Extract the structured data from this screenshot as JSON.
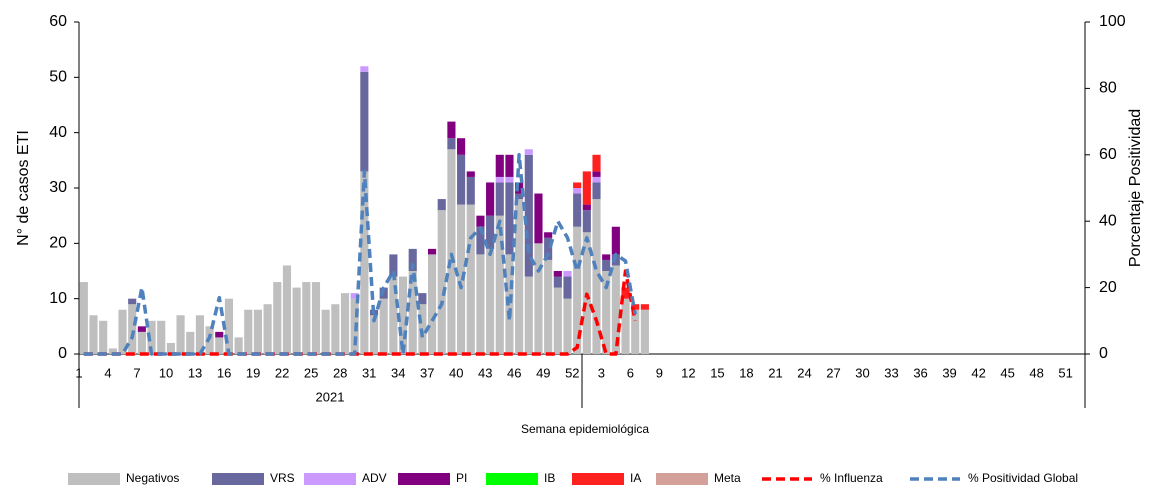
{
  "chart_data": {
    "type": "bar",
    "x_label": "Semana epidemiológica",
    "y_label": "N° de casos ETI",
    "y2_label": "Porcentaje  Positividad",
    "x_group_label": "2021",
    "ylim": [
      0,
      60
    ],
    "yticks": [
      0,
      10,
      20,
      30,
      40,
      50,
      60
    ],
    "y2lim": [
      0,
      100
    ],
    "y2ticks": [
      0,
      20,
      40,
      60,
      80,
      100
    ],
    "stacked": true,
    "categories": [
      "1",
      null,
      null,
      "4",
      null,
      null,
      "7",
      null,
      null,
      "10",
      null,
      null,
      "13",
      null,
      null,
      "16",
      null,
      null,
      "19",
      null,
      null,
      "22",
      null,
      null,
      "25",
      null,
      null,
      "28",
      null,
      null,
      "31",
      null,
      null,
      "34",
      null,
      null,
      "37",
      null,
      null,
      "40",
      null,
      null,
      "43",
      null,
      null,
      "46",
      null,
      null,
      "49",
      null,
      null,
      "52",
      null,
      null,
      "3",
      null,
      null,
      "6",
      null,
      null,
      "9",
      null,
      null,
      "12",
      null,
      null,
      "15",
      null,
      null,
      "18",
      null,
      null,
      "21",
      null,
      null,
      "24",
      null,
      null,
      "27",
      null,
      null,
      "30",
      null,
      null,
      "33",
      null,
      null,
      "36",
      null,
      null,
      "39",
      null,
      null,
      "42",
      null,
      null,
      "45",
      null,
      null,
      "48",
      null,
      null,
      "51",
      null
    ],
    "series": [
      {
        "name": "Negativos",
        "color": "#bfbfbf",
        "values": [
          13,
          7,
          6,
          1,
          8,
          9,
          4,
          6,
          6,
          2,
          7,
          4,
          7,
          5,
          3,
          10,
          3,
          8,
          8,
          9,
          13,
          16,
          12,
          13,
          13,
          8,
          9,
          11,
          10,
          33,
          7,
          10,
          14,
          14,
          15,
          9,
          18,
          26,
          37,
          27,
          27,
          18,
          19,
          25,
          18,
          28,
          14,
          20,
          17,
          12,
          10,
          23,
          22,
          28,
          15,
          16,
          10,
          8,
          8,
          null,
          null,
          null,
          null,
          null,
          null,
          null,
          null,
          null,
          null,
          null,
          null,
          null,
          null,
          null,
          null,
          null,
          null,
          null,
          null,
          null,
          null,
          null,
          null,
          null,
          null,
          null,
          null,
          null,
          null,
          null,
          null,
          null,
          null,
          null,
          null,
          null,
          null,
          null,
          null,
          null,
          null,
          null,
          null,
          null
        ]
      },
      {
        "name": "VRS",
        "color": "#68689e",
        "values": [
          0,
          0,
          0,
          0,
          0,
          1,
          0,
          0,
          0,
          0,
          0,
          0,
          0,
          0,
          0,
          0,
          0,
          0,
          0,
          0,
          0,
          0,
          0,
          0,
          0,
          0,
          0,
          0,
          0,
          18,
          1,
          2,
          4,
          0,
          4,
          2,
          0,
          2,
          2,
          9,
          5,
          5,
          6,
          6,
          13,
          1,
          22,
          0,
          4,
          2,
          4,
          6,
          4,
          3,
          2,
          2,
          0,
          0,
          0,
          null,
          null,
          null,
          null,
          null,
          null,
          null,
          null,
          null,
          null,
          null,
          null,
          null,
          null,
          null,
          null,
          null,
          null,
          null,
          null,
          null,
          null,
          null,
          null,
          null,
          null,
          null,
          null,
          null,
          null,
          null,
          null,
          null,
          null,
          null,
          null,
          null,
          null,
          null,
          null,
          null,
          null,
          null,
          null,
          null
        ]
      },
      {
        "name": "ADV",
        "color": "#cc99ff",
        "values": [
          0,
          0,
          0,
          0,
          0,
          0,
          0,
          0,
          0,
          0,
          0,
          0,
          0,
          0,
          0,
          0,
          0,
          0,
          0,
          0,
          0,
          0,
          0,
          0,
          0,
          0,
          0,
          0,
          1,
          1,
          0,
          0,
          0,
          0,
          0,
          0,
          0,
          0,
          0,
          0,
          0,
          0,
          0,
          1,
          1,
          0,
          1,
          0,
          0,
          0,
          1,
          1,
          0,
          1,
          0,
          0,
          0,
          0,
          0,
          null,
          null,
          null,
          null,
          null,
          null,
          null,
          null,
          null,
          null,
          null,
          null,
          null,
          null,
          null,
          null,
          null,
          null,
          null,
          null,
          null,
          null,
          null,
          null,
          null,
          null,
          null,
          null,
          null,
          null,
          null,
          null,
          null,
          null,
          null,
          null,
          null,
          null,
          null,
          null,
          null,
          null,
          null,
          null,
          null
        ]
      },
      {
        "name": "PI",
        "color": "#800080",
        "values": [
          0,
          0,
          0,
          0,
          0,
          0,
          1,
          0,
          0,
          0,
          0,
          0,
          0,
          0,
          1,
          0,
          0,
          0,
          0,
          0,
          0,
          0,
          0,
          0,
          0,
          0,
          0,
          0,
          0,
          0,
          0,
          0,
          0,
          0,
          0,
          0,
          1,
          0,
          3,
          3,
          1,
          2,
          6,
          4,
          4,
          2,
          0,
          9,
          1,
          1,
          0,
          0,
          1,
          1,
          1,
          5,
          0,
          0,
          0,
          null,
          null,
          null,
          null,
          null,
          null,
          null,
          null,
          null,
          null,
          null,
          null,
          null,
          null,
          null,
          null,
          null,
          null,
          null,
          null,
          null,
          null,
          null,
          null,
          null,
          null,
          null,
          null,
          null,
          null,
          null,
          null,
          null,
          null,
          null,
          null,
          null,
          null,
          null,
          null,
          null,
          null,
          null,
          null,
          null
        ]
      },
      {
        "name": "IB",
        "color": "#00ff00",
        "values": [
          0,
          0,
          0,
          0,
          0,
          0,
          0,
          0,
          0,
          0,
          0,
          0,
          0,
          0,
          0,
          0,
          0,
          0,
          0,
          0,
          0,
          0,
          0,
          0,
          0,
          0,
          0,
          0,
          0,
          0,
          0,
          0,
          0,
          0,
          0,
          0,
          0,
          0,
          0,
          0,
          0,
          0,
          0,
          0,
          0,
          0,
          0,
          0,
          0,
          0,
          0,
          0,
          0,
          0,
          0,
          0,
          0,
          0,
          0,
          null,
          null,
          null,
          null,
          null,
          null,
          null,
          null,
          null,
          null,
          null,
          null,
          null,
          null,
          null,
          null,
          null,
          null,
          null,
          null,
          null,
          null,
          null,
          null,
          null,
          null,
          null,
          null,
          null,
          null,
          null,
          null,
          null,
          null,
          null,
          null,
          null,
          null,
          null,
          null,
          null,
          null,
          null,
          null,
          null
        ]
      },
      {
        "name": "IA",
        "color": "#ff2020",
        "values": [
          0,
          0,
          0,
          0,
          0,
          0,
          0,
          0,
          0,
          0,
          0,
          0,
          0,
          0,
          0,
          0,
          0,
          0,
          0,
          0,
          0,
          0,
          0,
          0,
          0,
          0,
          0,
          0,
          0,
          0,
          0,
          0,
          0,
          0,
          0,
          0,
          0,
          0,
          0,
          0,
          0,
          0,
          0,
          0,
          0,
          0,
          0,
          0,
          0,
          0,
          0,
          1,
          6,
          3,
          0,
          0,
          2,
          1,
          1,
          null,
          null,
          null,
          null,
          null,
          null,
          null,
          null,
          null,
          null,
          null,
          null,
          null,
          null,
          null,
          null,
          null,
          null,
          null,
          null,
          null,
          null,
          null,
          null,
          null,
          null,
          null,
          null,
          null,
          null,
          null,
          null,
          null,
          null,
          null,
          null,
          null,
          null,
          null,
          null,
          null,
          null,
          null,
          null,
          null
        ]
      },
      {
        "name": "Meta",
        "color": "#d4a09a",
        "values": [
          0,
          0,
          0,
          0,
          0,
          0,
          0,
          0,
          0,
          0,
          0,
          0,
          0,
          0,
          0,
          0,
          0,
          0,
          0,
          0,
          0,
          0,
          0,
          0,
          0,
          0,
          0,
          0,
          0,
          0,
          0,
          0,
          0,
          0,
          0,
          0,
          0,
          0,
          0,
          0,
          0,
          0,
          0,
          0,
          0,
          0,
          0,
          0,
          0,
          0,
          0,
          0,
          0,
          0,
          0,
          0,
          0,
          0,
          0,
          null,
          null,
          null,
          null,
          null,
          null,
          null,
          null,
          null,
          null,
          null,
          null,
          null,
          null,
          null,
          null,
          null,
          null,
          null,
          null,
          null,
          null,
          null,
          null,
          null,
          null,
          null,
          null,
          null,
          null,
          null,
          null,
          null,
          null,
          null,
          null,
          null,
          null,
          null,
          null,
          null,
          null,
          null,
          null,
          null
        ]
      },
      {
        "name": "% Influenza",
        "color": "#ff0000",
        "type": "line",
        "dashed": true,
        "axis": "y2",
        "values": [
          0,
          0,
          0,
          0,
          0,
          0,
          0,
          0,
          0,
          0,
          0,
          0,
          0,
          0,
          0,
          0,
          0,
          0,
          0,
          0,
          0,
          0,
          0,
          0,
          0,
          0,
          0,
          0,
          0,
          0,
          0,
          0,
          0,
          0,
          0,
          0,
          0,
          0,
          0,
          0,
          0,
          0,
          0,
          0,
          0,
          0,
          0,
          0,
          0,
          0,
          0,
          2,
          18,
          10,
          0,
          0,
          25,
          10,
          null,
          null,
          null,
          null,
          null,
          null,
          null,
          null,
          null,
          null,
          null,
          null,
          null,
          null,
          null,
          null,
          null,
          null,
          null,
          null,
          null,
          null,
          null,
          null,
          null,
          null,
          null,
          null,
          null,
          null,
          null,
          null,
          null,
          null,
          null,
          null,
          null,
          null,
          null,
          null,
          null,
          null,
          null,
          null,
          null,
          null
        ]
      },
      {
        "name": "% Positividad Global",
        "color": "#4f81bd",
        "type": "line",
        "dashed": true,
        "axis": "y2",
        "values": [
          0,
          0,
          0,
          0,
          0,
          5,
          20,
          0,
          0,
          0,
          0,
          0,
          0,
          5,
          17,
          0,
          0,
          0,
          0,
          0,
          0,
          0,
          0,
          0,
          0,
          0,
          0,
          0,
          0,
          55,
          10,
          20,
          25,
          0,
          27,
          5,
          10,
          15,
          30,
          20,
          35,
          38,
          30,
          40,
          10,
          60,
          30,
          25,
          30,
          40,
          35,
          25,
          35,
          25,
          20,
          30,
          28,
          12,
          null,
          null,
          null,
          null,
          null,
          null,
          null,
          null,
          null,
          null,
          null,
          null,
          null,
          null,
          null,
          null,
          null,
          null,
          null,
          null,
          null,
          null,
          null,
          null,
          null,
          null,
          null,
          null,
          null,
          null,
          null,
          null,
          null,
          null,
          null,
          null,
          null,
          null,
          null,
          null,
          null,
          null,
          null,
          null,
          null,
          null
        ]
      }
    ]
  }
}
